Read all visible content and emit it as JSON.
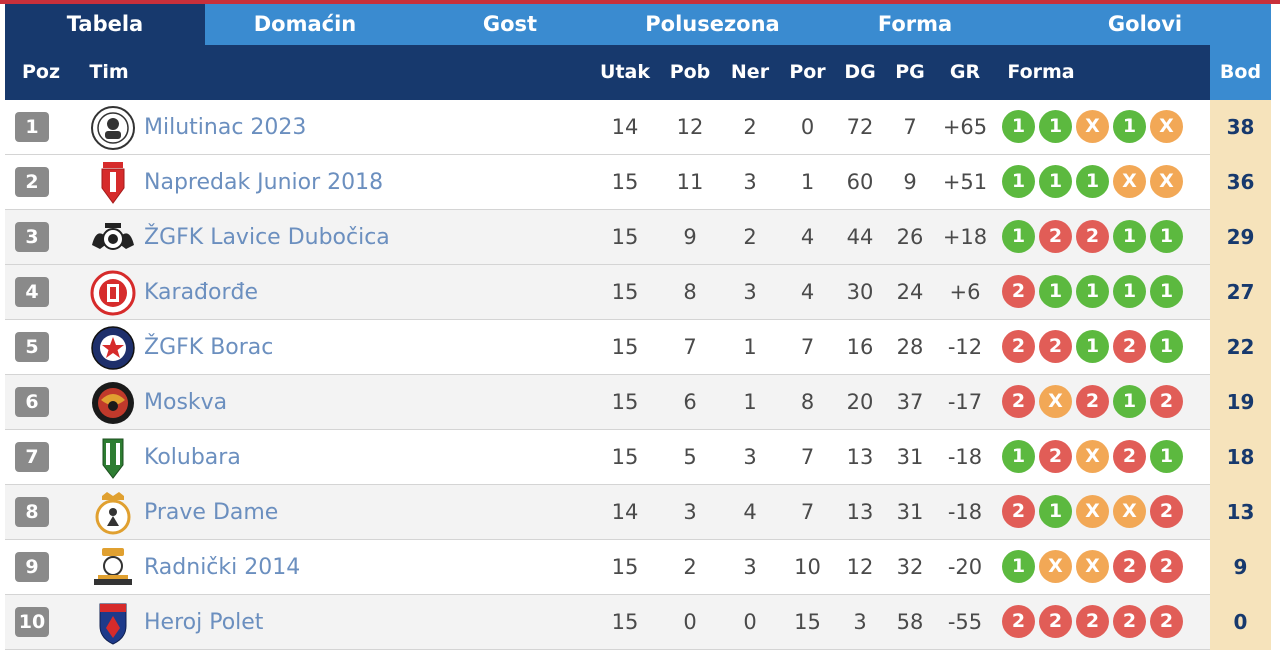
{
  "tabs": [
    "Tabela",
    "Domaćin",
    "Gost",
    "Polusezona",
    "Forma",
    "Golovi"
  ],
  "headers": {
    "poz": "Poz",
    "tim": "Tim",
    "utak": "Utak",
    "pob": "Pob",
    "ner": "Ner",
    "por": "Por",
    "dg": "DG",
    "pg": "PG",
    "gr": "GR",
    "forma": "Forma",
    "bod": "Bod"
  },
  "colors": {
    "accent": "#c8303b",
    "tab_bar": "#3a8bd0",
    "header": "#17396d",
    "win": "#5cb93f",
    "loss": "#e15d57",
    "draw": "#f2a856",
    "points_bg": "#f6e3bb",
    "team_link": "#6b8fbf"
  },
  "rows": [
    {
      "poz": "1",
      "tim": "Milutinac 2023",
      "utak": "14",
      "pob": "12",
      "ner": "2",
      "por": "0",
      "dg": "72",
      "pg": "7",
      "gr": "+65",
      "forma": [
        "1",
        "1",
        "X",
        "1",
        "X"
      ],
      "bod": "38"
    },
    {
      "poz": "2",
      "tim": "Napredak Junior 2018",
      "utak": "15",
      "pob": "11",
      "ner": "3",
      "por": "1",
      "dg": "60",
      "pg": "9",
      "gr": "+51",
      "forma": [
        "1",
        "1",
        "1",
        "X",
        "X"
      ],
      "bod": "36"
    },
    {
      "poz": "3",
      "tim": "ŽGFK Lavice Dubočica",
      "utak": "15",
      "pob": "9",
      "ner": "2",
      "por": "4",
      "dg": "44",
      "pg": "26",
      "gr": "+18",
      "forma": [
        "1",
        "2",
        "2",
        "1",
        "1"
      ],
      "bod": "29"
    },
    {
      "poz": "4",
      "tim": "Karađorđe",
      "utak": "15",
      "pob": "8",
      "ner": "3",
      "por": "4",
      "dg": "30",
      "pg": "24",
      "gr": "+6",
      "forma": [
        "2",
        "1",
        "1",
        "1",
        "1"
      ],
      "bod": "27"
    },
    {
      "poz": "5",
      "tim": "ŽGFK Borac",
      "utak": "15",
      "pob": "7",
      "ner": "1",
      "por": "7",
      "dg": "16",
      "pg": "28",
      "gr": "-12",
      "forma": [
        "2",
        "2",
        "1",
        "2",
        "1"
      ],
      "bod": "22"
    },
    {
      "poz": "6",
      "tim": "Moskva",
      "utak": "15",
      "pob": "6",
      "ner": "1",
      "por": "8",
      "dg": "20",
      "pg": "37",
      "gr": "-17",
      "forma": [
        "2",
        "X",
        "2",
        "1",
        "2"
      ],
      "bod": "19"
    },
    {
      "poz": "7",
      "tim": "Kolubara",
      "utak": "15",
      "pob": "5",
      "ner": "3",
      "por": "7",
      "dg": "13",
      "pg": "31",
      "gr": "-18",
      "forma": [
        "1",
        "2",
        "X",
        "2",
        "1"
      ],
      "bod": "18"
    },
    {
      "poz": "8",
      "tim": "Prave Dame",
      "utak": "14",
      "pob": "3",
      "ner": "4",
      "por": "7",
      "dg": "13",
      "pg": "31",
      "gr": "-18",
      "forma": [
        "2",
        "1",
        "X",
        "X",
        "2"
      ],
      "bod": "13"
    },
    {
      "poz": "9",
      "tim": "Radnički 2014",
      "utak": "15",
      "pob": "2",
      "ner": "3",
      "por": "10",
      "dg": "12",
      "pg": "32",
      "gr": "-20",
      "forma": [
        "1",
        "X",
        "X",
        "2",
        "2"
      ],
      "bod": "9"
    },
    {
      "poz": "10",
      "tim": "Heroj Polet",
      "utak": "15",
      "pob": "0",
      "ner": "0",
      "por": "15",
      "dg": "3",
      "pg": "58",
      "gr": "-55",
      "forma": [
        "2",
        "2",
        "2",
        "2",
        "2"
      ],
      "bod": "0"
    }
  ]
}
